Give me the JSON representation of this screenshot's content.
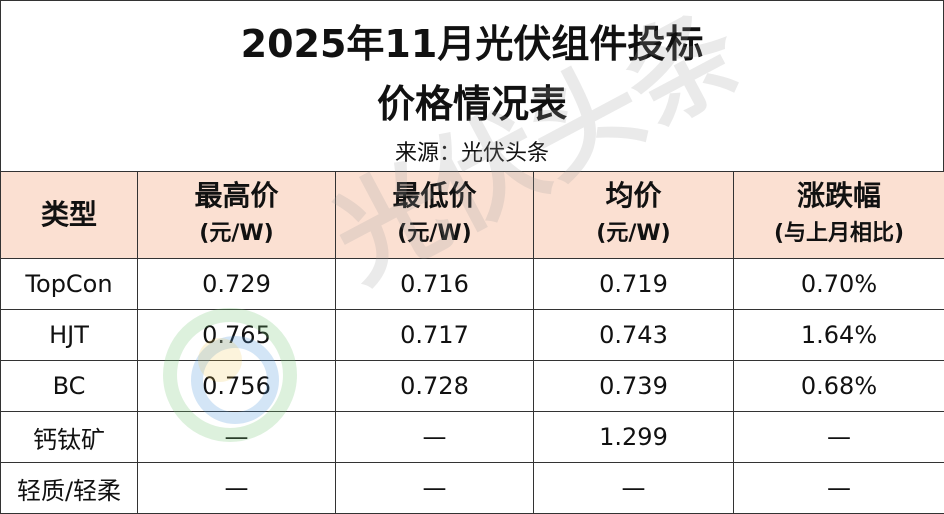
{
  "header": {
    "title": [
      "2025年11月光伏组件投标",
      "价格情况表"
    ],
    "source": "来源：光伏头条"
  },
  "table": {
    "columns": [
      [
        "类型"
      ],
      [
        "最高价",
        "(元/W)"
      ],
      [
        "最低价",
        "(元/W)"
      ],
      [
        "均价",
        "(元/W)"
      ],
      [
        "涨跌幅",
        "(与上月相比)"
      ]
    ],
    "rows": [
      [
        "TopCon",
        "0.729",
        "0.716",
        "0.719",
        "0.70%"
      ],
      [
        "HJT",
        "0.765",
        "0.717",
        "0.743",
        "1.64%"
      ],
      [
        "BC",
        "0.756",
        "0.728",
        "0.739",
        "0.68%"
      ],
      [
        "钙钛矿",
        "—",
        "—",
        "1.299",
        "—"
      ],
      [
        "轻质/轻柔",
        "—",
        "—",
        "—",
        "—"
      ]
    ]
  },
  "watermark": "光伏头条"
}
